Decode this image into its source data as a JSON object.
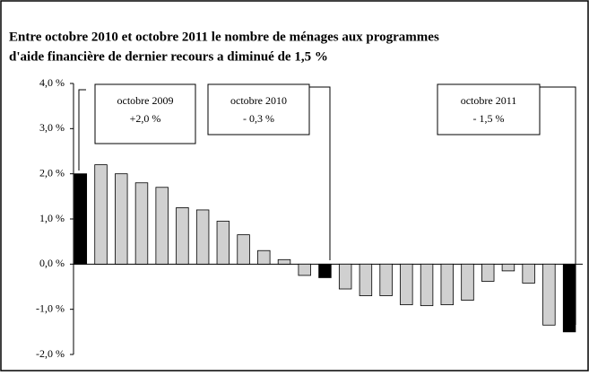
{
  "chart_data": {
    "type": "bar",
    "title": [
      "Entre octobre 2010 et octobre 2011 le nombre de ménages aux programmes",
      "d'aide financière de dernier recours a diminué de 1,5 %"
    ],
    "values": [
      2.0,
      2.2,
      2.0,
      1.8,
      1.7,
      1.25,
      1.2,
      0.95,
      0.65,
      0.3,
      0.1,
      -0.25,
      -0.3,
      -0.55,
      -0.7,
      -0.7,
      -0.9,
      -0.92,
      -0.9,
      -0.8,
      -0.38,
      -0.15,
      -0.42,
      -1.35,
      -1.5
    ],
    "colors": [
      "#000000",
      "#d0d0d0",
      "#d0d0d0",
      "#d0d0d0",
      "#d0d0d0",
      "#d0d0d0",
      "#d0d0d0",
      "#d0d0d0",
      "#d0d0d0",
      "#d0d0d0",
      "#d0d0d0",
      "#d0d0d0",
      "#000000",
      "#d0d0d0",
      "#d0d0d0",
      "#d0d0d0",
      "#d0d0d0",
      "#d0d0d0",
      "#d0d0d0",
      "#d0d0d0",
      "#d0d0d0",
      "#d0d0d0",
      "#d0d0d0",
      "#d0d0d0",
      "#000000"
    ],
    "ylim": [
      -2,
      4
    ],
    "yticks": [
      {
        "value": -2,
        "label": "-2,0 %"
      },
      {
        "value": -1,
        "label": "-1,0 %"
      },
      {
        "value": 0,
        "label": "0,0 %"
      },
      {
        "value": 1,
        "label": "1,0 %"
      },
      {
        "value": 2,
        "label": "2,0 %"
      },
      {
        "value": 3,
        "label": "3,0 %"
      },
      {
        "value": 4,
        "label": "4,0 %"
      }
    ],
    "annotations": [
      [
        "octobre 2009",
        "+2,0 %"
      ],
      [
        "octobre 2010",
        "- 0,3 %"
      ],
      [
        "octobre 2011",
        "- 1,5 %"
      ]
    ]
  }
}
